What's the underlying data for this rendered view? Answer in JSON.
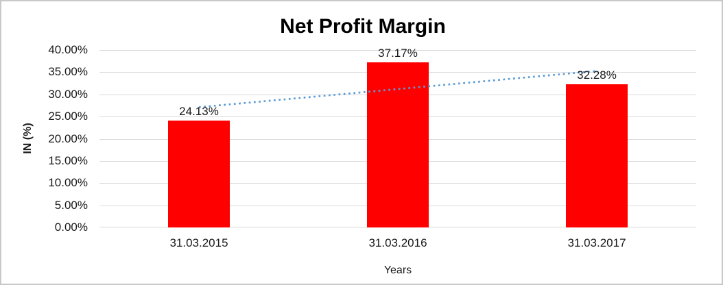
{
  "chart_data": {
    "type": "bar",
    "title": "Net Profit Margin",
    "xlabel": "Years",
    "ylabel": "IN (%)",
    "categories": [
      "31.03.2015",
      "31.03.2016",
      "31.03.2017"
    ],
    "values": [
      24.13,
      37.17,
      32.28
    ],
    "data_labels": [
      "24.13%",
      "37.17%",
      "32.28%"
    ],
    "ylim": [
      0,
      40
    ],
    "ytick_step": 5,
    "ytick_labels": [
      "0.00%",
      "5.00%",
      "10.00%",
      "15.00%",
      "20.00%",
      "25.00%",
      "30.00%",
      "35.00%",
      "40.00%"
    ],
    "grid": true,
    "legend": "none",
    "bar_color": "#ff0000",
    "gridline_color": "#d9d9d9",
    "trendline": {
      "type": "linear",
      "style": "dotted",
      "color": "#5b9bd5"
    }
  }
}
